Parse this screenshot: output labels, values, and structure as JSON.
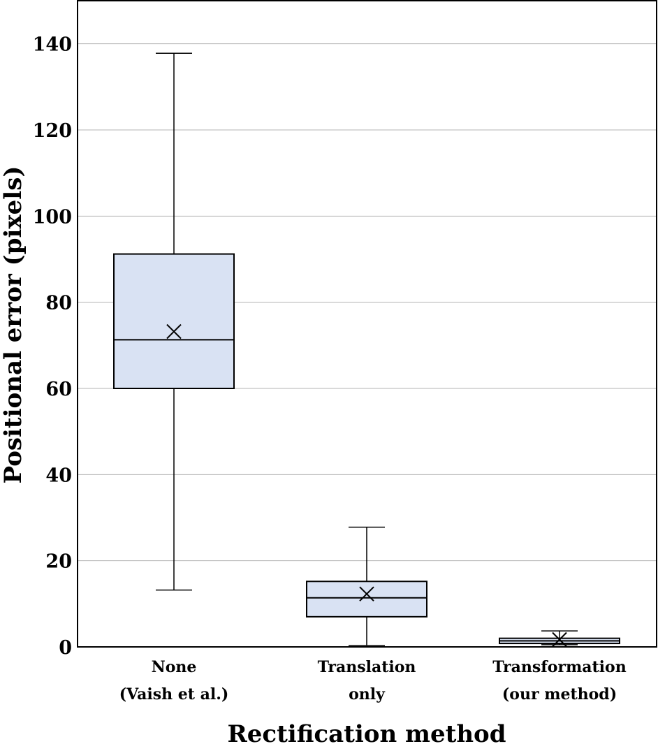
{
  "chart_data": {
    "type": "box",
    "ylabel": "Positional error (pixels)",
    "xlabel": "Rectification method",
    "ylim": [
      0,
      150
    ],
    "yticks": [
      0,
      20,
      40,
      60,
      80,
      100,
      120,
      140
    ],
    "grid": "horizontal",
    "categories": [
      {
        "line1": "None",
        "line2": "(Vaish et al.)"
      },
      {
        "line1": "Translation",
        "line2": "only"
      },
      {
        "line1": "Transformation",
        "line2": "(our method)"
      }
    ],
    "boxes": [
      {
        "whisker_low": 13.2,
        "q1": 60.0,
        "median": 71.3,
        "q3": 91.2,
        "whisker_high": 137.8,
        "mean": 73.2
      },
      {
        "whisker_low": 0.3,
        "q1": 7.0,
        "median": 11.4,
        "q3": 15.2,
        "whisker_high": 27.8,
        "mean": 12.3
      },
      {
        "whisker_low": 0.5,
        "q1": 0.8,
        "median": 1.4,
        "q3": 2.0,
        "whisker_high": 3.7,
        "mean": 1.7
      }
    ],
    "colors": {
      "box_fill": "#d9e2f3",
      "grid": "#b3b3b3"
    }
  }
}
